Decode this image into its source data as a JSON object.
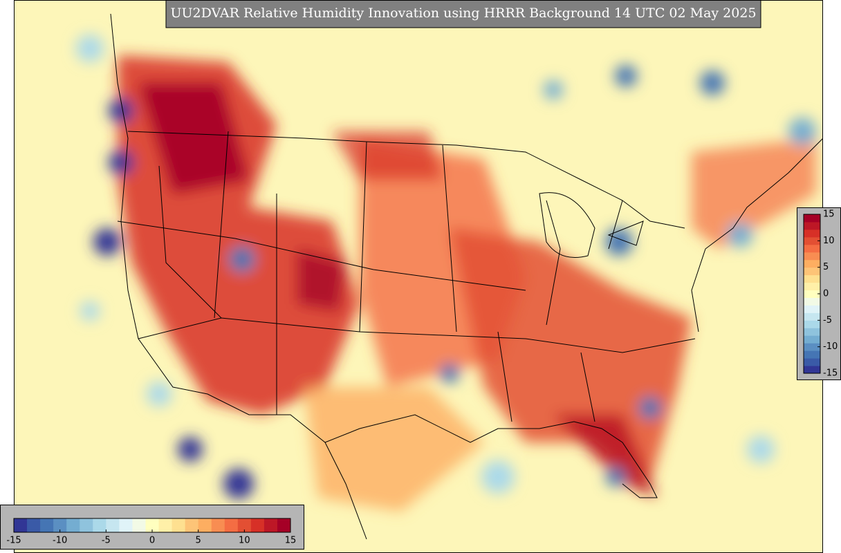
{
  "title": "UU2DVAR Relative Humidity Innovation using HRRR Background 14 UTC 02 May 2025",
  "colorbar": {
    "vlim": [
      -15,
      15
    ],
    "colors": [
      "#313695",
      "#3a5aa7",
      "#4575b4",
      "#5b8fc2",
      "#74add1",
      "#8fc3dd",
      "#abd9e9",
      "#c6e6f0",
      "#e0f3f8",
      "#f2fae6",
      "#ffffbf",
      "#fff0a8",
      "#fee090",
      "#fdc477",
      "#fdae61",
      "#f88d52",
      "#f46d43",
      "#e34f33",
      "#d73027",
      "#bd1726",
      "#a50026"
    ],
    "horizontal_ticks": [
      -15,
      -10,
      -5,
      0,
      5,
      10,
      15
    ],
    "vertical_ticks": [
      15,
      10,
      5,
      0,
      -5,
      -10,
      -15
    ]
  }
}
